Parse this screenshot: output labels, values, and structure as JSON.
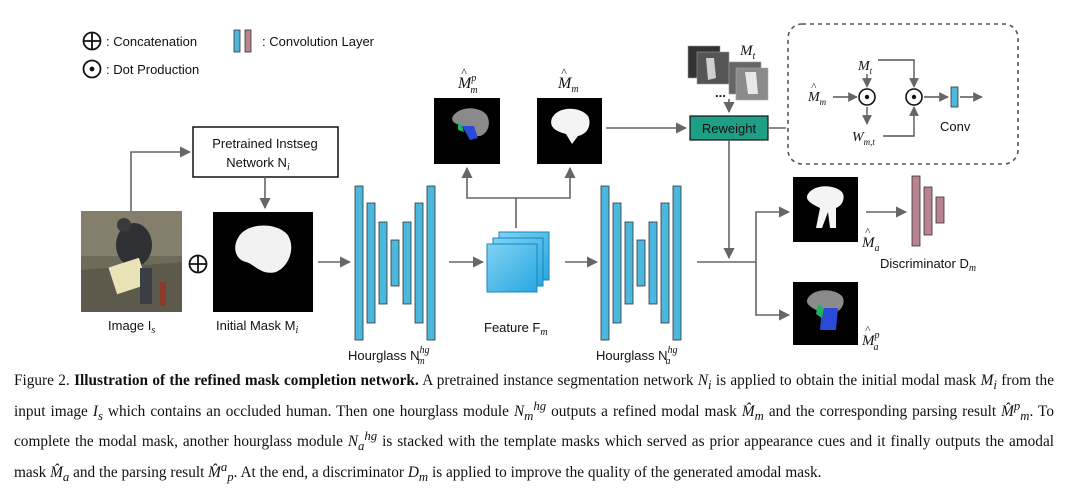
{
  "legend": {
    "concat_label": ": Concatenation",
    "dot_label": ": Dot Production",
    "conv_label": ": Convolution Layer"
  },
  "nodes": {
    "pretrained_line1": "Pretrained Instseg",
    "pretrained_line2": "Network N",
    "pretrained_sub": "i",
    "image_label": "Image I",
    "image_sub": "s",
    "initial_mask_label": "Initial Mask M",
    "initial_mask_sub": "i",
    "hourglass1_label": "Hourglass N",
    "hourglass1_sub": "m",
    "hourglass1_sup": "hg",
    "feature_label": "Feature F",
    "feature_sub": "m",
    "hourglass2_label": "Hourglass N",
    "hourglass2_sub": "a",
    "hourglass2_sup": "hg",
    "parsing_m_label": "M",
    "parsing_m_sub": "m",
    "parsing_m_sup": "p",
    "modal_m_label": "M",
    "modal_m_sub": "m",
    "template_label": "M",
    "template_sub": "t",
    "template_dots": "...",
    "reweight_label": "Reweight",
    "amodal_label": "M",
    "amodal_sub": "a",
    "amodal_parse_label": "M",
    "amodal_parse_sub": "a",
    "amodal_parse_sup": "p",
    "discriminator_label": "Discriminator D",
    "discriminator_sub": "m"
  },
  "inset": {
    "m_hat": "M",
    "m_hat_sub": "m",
    "m_t": "M",
    "m_t_sub": "t",
    "w": "W",
    "w_sub": "m,t",
    "conv_label": "Conv"
  },
  "caption": {
    "figure_no": "Figure 2.",
    "title": "Illustration of the refined mask completion network.",
    "s1": " A pretrained instance segmentation network ",
    "s2": " is applied to obtain the initial modal mask ",
    "s3": " from the input image ",
    "s4": " which contains an occluded human. Then one hourglass module ",
    "s5": " outputs a refined modal mask ",
    "s6": " and the corresponding parsing result ",
    "s7": ". To complete the modal mask, another hourglass module ",
    "s8": " is stacked with the template masks which served as prior appearance cues and it finally outputs the amodal mask ",
    "s9": " and the parsing result ",
    "s10": ". At the end, a discriminator ",
    "s11": " is applied to improve the quality of the generated amodal mask.",
    "v_ni": "N",
    "v_ni_sub": "i",
    "v_mi": "M",
    "v_mi_sub": "i",
    "v_is": "I",
    "v_is_sub": "s",
    "v_nm": "N",
    "v_nm_sub": "m",
    "v_nm_sup": "hg",
    "v_mm": "M̂",
    "v_mm_sub": "m",
    "v_mmp": "M̂",
    "v_mmp_sub": "m",
    "v_mmp_sup": "p",
    "v_na": "N",
    "v_na_sub": "a",
    "v_na_sup": "hg",
    "v_ma": "M̂",
    "v_ma_sub": "a",
    "v_mp": "M̂",
    "v_mp_sub": "p",
    "v_mp_sup": "a",
    "v_dm": "D",
    "v_dm_sub": "m"
  },
  "colors": {
    "conv_blue": "#4db8dd",
    "conv_pink": "#b9848f",
    "reweight_green": "#1e9e85",
    "feature_blue": "#3fb4e8",
    "arrow_gray": "#666666"
  }
}
